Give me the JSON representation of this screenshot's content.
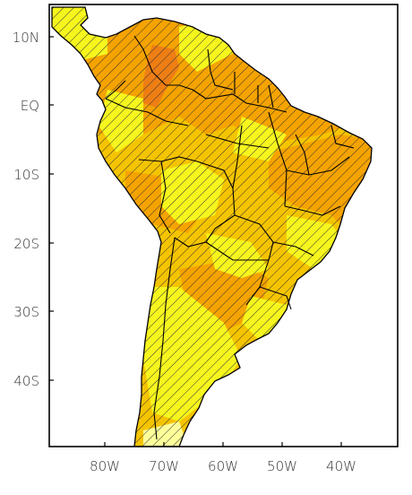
{
  "map": {
    "lat_labels": [
      "10N",
      "EQ",
      "10S",
      "20S",
      "30S",
      "40S"
    ],
    "lon_labels": [
      "80W",
      "70W",
      "60W",
      "50W",
      "40W"
    ],
    "colors": {
      "ocean": "#ffffff",
      "yellow": "#f6f61e",
      "gold": "#f5c400",
      "orange": "#f5a300",
      "deep_orange": "#ee7e14",
      "light_yellow": "#ffff9a",
      "border": "#000000",
      "hatch": "#333333"
    }
  }
}
